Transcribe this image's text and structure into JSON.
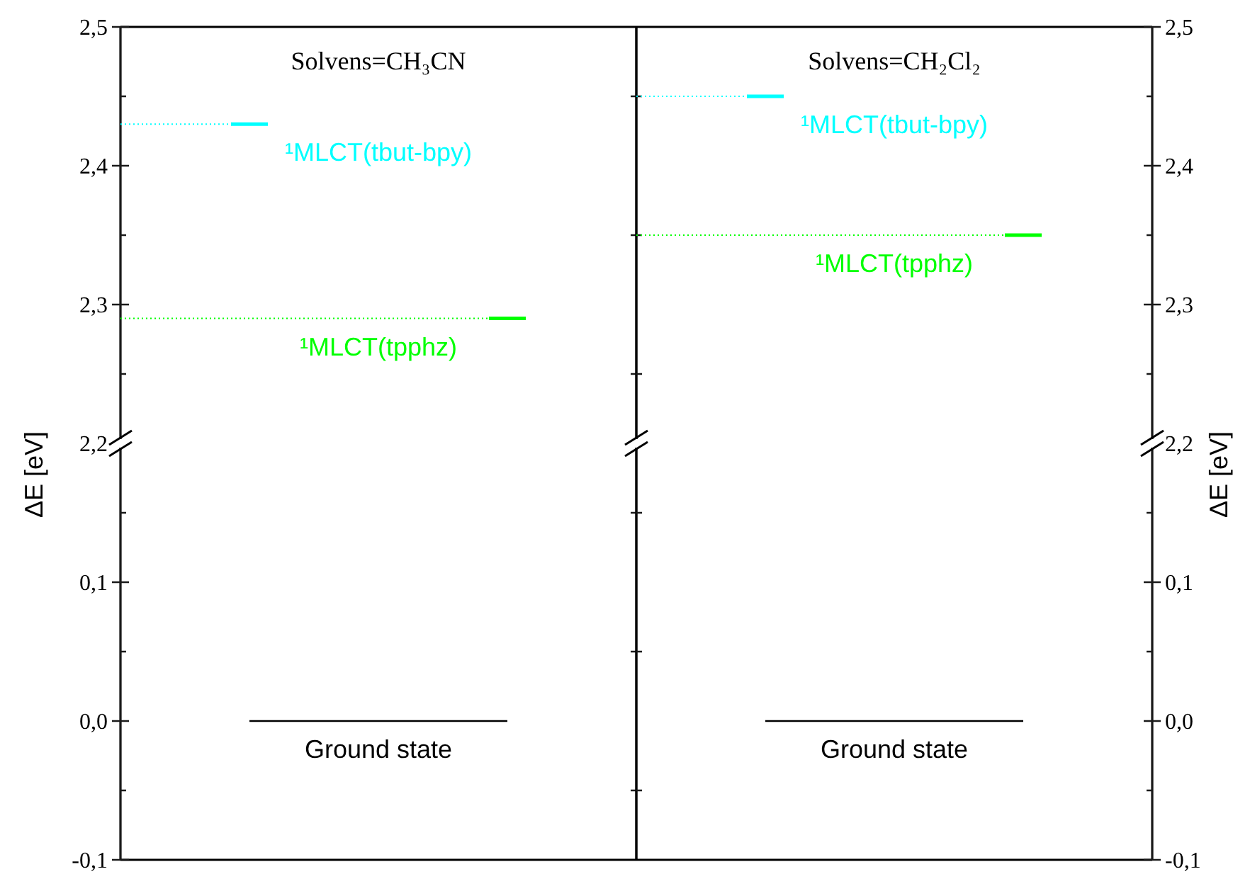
{
  "chart_data": [
    {
      "type": "line",
      "title": "Solvens=CH₃CN",
      "ylabel": "ΔE [eV]",
      "ylim": [
        2.2,
        2.5
      ],
      "tick_labels": "y",
      "categories": [
        null,
        null,
        null,
        null,
        null,
        null,
        null,
        null,
        null,
        null,
        null,
        null,
        null,
        null,
        null,
        null,
        null,
        null,
        null,
        null,
        null,
        null,
        null,
        null,
        null,
        null,
        null,
        null,
        null
      ],
      "yticks": [
        {
          "value": 2.2,
          "label": "2,2"
        },
        {
          "value": 2.25,
          "label": null
        },
        {
          "value": 2.3,
          "label": "2,3"
        },
        {
          "value": 2.35,
          "label": null
        },
        {
          "value": 2.4,
          "label": "2,4"
        },
        {
          "value": 2.45,
          "label": null
        },
        {
          "value": 2.5,
          "label": "2,5"
        }
      ],
      "series": [
        {
          "color": "#00ffff",
          "line_style": "dotted",
          "values": [
            2.43,
            2.43,
            2.43,
            2.43,
            2.43,
            2.43,
            2.43,
            null,
            null,
            null,
            null,
            null,
            null,
            null,
            null,
            null,
            null,
            null,
            null,
            null,
            null,
            null,
            null,
            null,
            null,
            null,
            null,
            null,
            null
          ]
        },
        {
          "name": "¹MLCT(tbut-bpy)",
          "color": "#00ffff",
          "line_style": "solid",
          "values": [
            null,
            null,
            null,
            null,
            null,
            null,
            2.43,
            2.43,
            2.43,
            null,
            null,
            null,
            null,
            null,
            null,
            null,
            null,
            null,
            null,
            null,
            null,
            null,
            null,
            null,
            null,
            null,
            null,
            null,
            null
          ]
        },
        {
          "color": "#00ff00",
          "line_style": "dotted",
          "values": [
            2.29,
            2.29,
            2.29,
            2.29,
            2.29,
            2.29,
            2.29,
            2.29,
            2.29,
            2.29,
            2.29,
            2.29,
            2.29,
            2.29,
            2.29,
            2.29,
            2.29,
            2.29,
            2.29,
            2.29,
            2.29,
            null,
            null,
            null,
            null,
            null,
            null,
            null,
            null
          ]
        },
        {
          "name": "¹MLCT(tpphz)",
          "color": "#00ff00",
          "line_style": "solid",
          "values": [
            null,
            null,
            null,
            null,
            null,
            null,
            null,
            null,
            null,
            null,
            null,
            null,
            null,
            null,
            null,
            null,
            null,
            null,
            null,
            null,
            2.29,
            2.29,
            2.29,
            null,
            null,
            null,
            null,
            null,
            null
          ]
        }
      ]
    },
    {
      "type": "line",
      "title": "Solvens=CH₂Cl₂",
      "ylabel": "ΔE [eV]",
      "ylim": [
        2.2,
        2.5
      ],
      "tick_labels": "y",
      "categories": [
        null,
        null,
        null,
        null,
        null,
        null,
        null,
        null,
        null,
        null,
        null,
        null,
        null,
        null,
        null,
        null,
        null,
        null,
        null,
        null,
        null,
        null,
        null,
        null,
        null,
        null,
        null,
        null,
        null
      ],
      "yticks": [
        {
          "value": 2.2,
          "label": "2,2"
        },
        {
          "value": 2.25,
          "label": null
        },
        {
          "value": 2.3,
          "label": "2,3"
        },
        {
          "value": 2.35,
          "label": null
        },
        {
          "value": 2.4,
          "label": "2,4"
        },
        {
          "value": 2.45,
          "label": null
        },
        {
          "value": 2.5,
          "label": "2,5"
        }
      ],
      "series": [
        {
          "color": "#00ffff",
          "line_style": "dotted",
          "values": [
            2.45,
            2.45,
            2.45,
            2.45,
            2.45,
            2.45,
            2.45,
            null,
            null,
            null,
            null,
            null,
            null,
            null,
            null,
            null,
            null,
            null,
            null,
            null,
            null,
            null,
            null,
            null,
            null,
            null,
            null,
            null,
            null
          ]
        },
        {
          "name": "¹MLCT(tbut-bpy)",
          "color": "#00ffff",
          "line_style": "solid",
          "values": [
            null,
            null,
            null,
            null,
            null,
            null,
            2.45,
            2.45,
            2.45,
            null,
            null,
            null,
            null,
            null,
            null,
            null,
            null,
            null,
            null,
            null,
            null,
            null,
            null,
            null,
            null,
            null,
            null,
            null,
            null
          ]
        },
        {
          "color": "#00ff00",
          "line_style": "dotted",
          "values": [
            2.35,
            2.35,
            2.35,
            2.35,
            2.35,
            2.35,
            2.35,
            2.35,
            2.35,
            2.35,
            2.35,
            2.35,
            2.35,
            2.35,
            2.35,
            2.35,
            2.35,
            2.35,
            2.35,
            2.35,
            2.35,
            null,
            null,
            null,
            null,
            null,
            null,
            null,
            null
          ]
        },
        {
          "name": "¹MLCT(tpphz)",
          "color": "#00ff00",
          "line_style": "solid",
          "values": [
            null,
            null,
            null,
            null,
            null,
            null,
            null,
            null,
            null,
            null,
            null,
            null,
            null,
            null,
            null,
            null,
            null,
            null,
            null,
            null,
            2.35,
            2.35,
            2.35,
            null,
            null,
            null,
            null,
            null,
            null
          ]
        }
      ]
    },
    {
      "type": "line",
      "ylim": [
        -0.1,
        0.2
      ],
      "tick_labels": "y",
      "categories": [
        null,
        null,
        null,
        null,
        null,
        null,
        null,
        null,
        null,
        null,
        null,
        null,
        null,
        null,
        null,
        null,
        null,
        null,
        null,
        null,
        null,
        null,
        null,
        null,
        null,
        null,
        null,
        null,
        null
      ],
      "yticks": [
        {
          "value": -0.1,
          "label": "-0,1"
        },
        {
          "value": -0.05,
          "label": null
        },
        {
          "value": 0,
          "label": "0,0"
        },
        {
          "value": 0.05,
          "label": null
        },
        {
          "value": 0.1,
          "label": "0,1"
        },
        {
          "value": 0.15,
          "label": null
        }
      ],
      "series": [
        {
          "name": "Ground state",
          "color": "#000000",
          "line_style": "solid",
          "values": [
            null,
            null,
            null,
            null,
            null,
            null,
            null,
            0,
            0,
            0,
            0,
            0,
            0,
            0,
            0,
            0,
            0,
            0,
            0,
            0,
            0,
            0,
            null,
            null,
            null,
            null,
            null,
            null,
            null
          ]
        }
      ]
    },
    {
      "type": "line",
      "ylim": [
        -0.1,
        0.2
      ],
      "tick_labels": "y",
      "categories": [
        null,
        null,
        null,
        null,
        null,
        null,
        null,
        null,
        null,
        null,
        null,
        null,
        null,
        null,
        null,
        null,
        null,
        null,
        null,
        null,
        null,
        null,
        null,
        null,
        null,
        null,
        null,
        null,
        null
      ],
      "yticks": [
        {
          "value": -0.1,
          "label": "-0,1"
        },
        {
          "value": -0.05,
          "label": null
        },
        {
          "value": 0,
          "label": "0,0"
        },
        {
          "value": 0.05,
          "label": null
        },
        {
          "value": 0.1,
          "label": "0,1"
        },
        {
          "value": 0.15,
          "label": null
        }
      ],
      "series": [
        {
          "name": "Ground state",
          "color": "#000000",
          "line_style": "solid",
          "values": [
            null,
            null,
            null,
            null,
            null,
            null,
            null,
            0,
            0,
            0,
            0,
            0,
            0,
            0,
            0,
            0,
            0,
            0,
            0,
            0,
            0,
            0,
            null,
            null,
            null,
            null,
            null,
            null,
            null
          ]
        }
      ]
    }
  ]
}
